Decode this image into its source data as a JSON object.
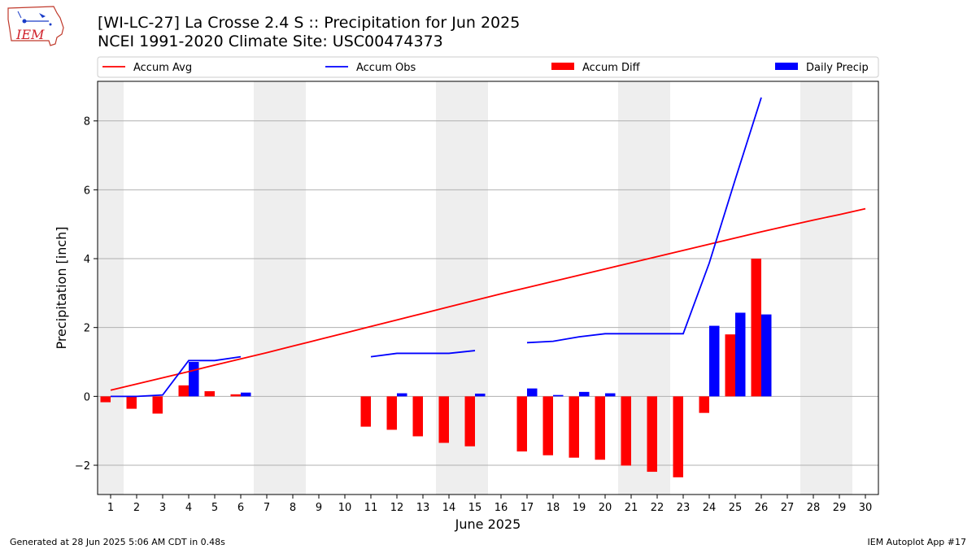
{
  "header": {
    "title": "[WI-LC-27] La Crosse 2.4 S :: Precipitation for Jun 2025",
    "subtitle": "NCEI 1991-2020 Climate Site: USC00474373",
    "logo_text": "IEM"
  },
  "footer": {
    "left": "Generated at 28 Jun 2025 5:06 AM CDT in 0.48s",
    "right": "IEM Autoplot App #17"
  },
  "chart_data": {
    "type": "bar",
    "xlabel": "June 2025",
    "ylabel": "Precipitation [inch]",
    "xlim": [
      0.5,
      30.5
    ],
    "ylim": [
      -2.85,
      9.15
    ],
    "yticks": [
      -2,
      0,
      2,
      4,
      6,
      8
    ],
    "ytick_labels": [
      "−2",
      "0",
      "2",
      "4",
      "6",
      "8"
    ],
    "days": [
      1,
      2,
      3,
      4,
      5,
      6,
      7,
      8,
      9,
      10,
      11,
      12,
      13,
      14,
      15,
      16,
      17,
      18,
      19,
      20,
      21,
      22,
      23,
      24,
      25,
      26,
      27,
      28,
      29,
      30
    ],
    "weekend_bands": [
      [
        0.5,
        1.5
      ],
      [
        6.5,
        8.5
      ],
      [
        13.5,
        15.5
      ],
      [
        20.5,
        22.5
      ],
      [
        27.5,
        29.5
      ]
    ],
    "grid": true,
    "legend_position": "top",
    "series": [
      {
        "name": "Accum Avg",
        "kind": "line",
        "color": "#ff0000",
        "x": [
          1,
          2,
          3,
          4,
          5,
          6,
          7,
          8,
          9,
          10,
          11,
          12,
          13,
          14,
          15,
          16,
          17,
          18,
          19,
          20,
          21,
          22,
          23,
          24,
          25,
          26,
          27,
          28,
          29,
          30
        ],
        "values": [
          0.18,
          0.36,
          0.54,
          0.72,
          0.91,
          1.09,
          1.27,
          1.46,
          1.65,
          1.84,
          2.03,
          2.22,
          2.41,
          2.6,
          2.79,
          2.98,
          3.16,
          3.34,
          3.52,
          3.7,
          3.88,
          4.06,
          4.24,
          4.42,
          4.6,
          4.78,
          4.95,
          5.12,
          5.28,
          5.45
        ]
      },
      {
        "name": "Accum Obs",
        "kind": "line",
        "color": "#0000ff",
        "segments": [
          {
            "x": [
              1,
              2,
              3,
              4,
              5,
              6
            ],
            "values": [
              0.0,
              0.0,
              0.04,
              1.04,
              1.04,
              1.15
            ]
          },
          {
            "x": [
              11,
              12,
              13,
              14,
              15
            ],
            "values": [
              1.15,
              1.25,
              1.25,
              1.25,
              1.33
            ]
          },
          {
            "x": [
              17,
              18,
              19,
              20,
              21,
              22,
              23,
              24,
              25,
              26
            ],
            "values": [
              1.56,
              1.6,
              1.73,
              1.82,
              1.82,
              1.82,
              1.82,
              3.87,
              6.3,
              8.68
            ]
          }
        ]
      },
      {
        "name": "Accum Diff",
        "kind": "bar",
        "color": "#ff0000",
        "x": [
          1,
          2,
          3,
          4,
          5,
          6,
          11,
          12,
          13,
          14,
          15,
          17,
          18,
          19,
          20,
          21,
          22,
          23,
          24,
          25,
          26
        ],
        "values": [
          -0.17,
          -0.36,
          -0.5,
          0.32,
          0.15,
          0.06,
          -0.88,
          -0.97,
          -1.16,
          -1.35,
          -1.45,
          -1.6,
          -1.71,
          -1.78,
          -1.84,
          -2.01,
          -2.19,
          -2.35,
          -0.48,
          1.8,
          4.0
        ]
      },
      {
        "name": "Daily Precip",
        "kind": "bar",
        "color": "#0000ff",
        "x": [
          4,
          6,
          12,
          15,
          17,
          18,
          19,
          20,
          24,
          25,
          26
        ],
        "values": [
          1.0,
          0.11,
          0.09,
          0.08,
          0.23,
          0.04,
          0.13,
          0.09,
          2.05,
          2.43,
          2.38
        ]
      }
    ]
  }
}
